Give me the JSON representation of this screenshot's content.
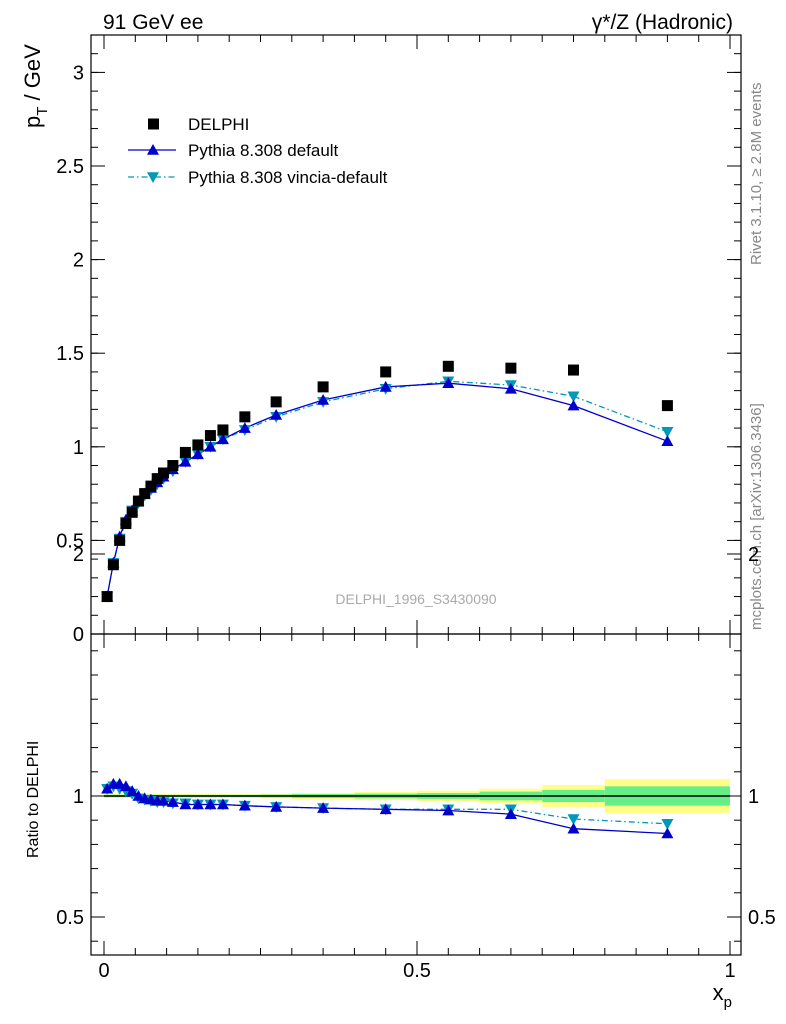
{
  "header": {
    "left": "91 GeV ee",
    "right": "γ*/Z (Hadronic)"
  },
  "side": {
    "rivet": "Rivet 3.1.10, ≥ 2.8M events",
    "mcplots": "mcplots.cern.ch [arXiv:1306.3436]"
  },
  "watermark": "DELPHI_1996_S3430090",
  "legend": [
    {
      "label": "DELPHI",
      "marker": "square",
      "color": "#000000"
    },
    {
      "label": "Pythia 8.308 default",
      "marker": "triangle-up",
      "color": "#0000cc"
    },
    {
      "label": "Pythia 8.308 vincia-default",
      "marker": "triangle-down",
      "color": "#0099bb"
    }
  ],
  "colors": {
    "data": "#000000",
    "default": "#0000cc",
    "vincia": "#0099bb",
    "band_inner": "#66ee88",
    "band_outer": "#ffff88"
  },
  "chart_data": [
    {
      "type": "scatter",
      "title": "",
      "xlabel": "x_p",
      "ylabel": "p_T / GeV",
      "xlim": [
        0,
        1
      ],
      "ylim": [
        0,
        3.2
      ],
      "yticks": [
        0,
        0.5,
        1,
        1.5,
        2,
        2.5,
        3
      ],
      "ytick_labels": [
        "0",
        "0.5",
        "1",
        "1.5",
        "2",
        "2.5",
        "3"
      ],
      "x": [
        0.005,
        0.015,
        0.025,
        0.035,
        0.045,
        0.055,
        0.065,
        0.075,
        0.085,
        0.095,
        0.11,
        0.13,
        0.15,
        0.17,
        0.19,
        0.225,
        0.275,
        0.35,
        0.45,
        0.55,
        0.65,
        0.75,
        0.9
      ],
      "series": [
        {
          "name": "DELPHI",
          "values": [
            0.2,
            0.37,
            0.5,
            0.59,
            0.65,
            0.71,
            0.75,
            0.79,
            0.83,
            0.86,
            0.9,
            0.97,
            1.01,
            1.06,
            1.09,
            1.16,
            1.24,
            1.32,
            1.4,
            1.43,
            1.42,
            1.41,
            1.22
          ]
        },
        {
          "name": "Pythia 8.308 default",
          "values": [
            0.2,
            0.38,
            0.52,
            0.61,
            0.66,
            0.71,
            0.75,
            0.78,
            0.81,
            0.84,
            0.88,
            0.92,
            0.96,
            1.0,
            1.04,
            1.1,
            1.17,
            1.25,
            1.32,
            1.34,
            1.31,
            1.22,
            1.03
          ]
        },
        {
          "name": "Pythia 8.308 vincia-default",
          "values": [
            0.2,
            0.38,
            0.51,
            0.6,
            0.66,
            0.7,
            0.74,
            0.77,
            0.8,
            0.83,
            0.87,
            0.92,
            0.96,
            1.0,
            1.04,
            1.09,
            1.16,
            1.24,
            1.31,
            1.35,
            1.33,
            1.27,
            1.08
          ]
        }
      ]
    },
    {
      "type": "line",
      "title": "",
      "xlabel": "x_p",
      "ylabel": "Ratio to DELPHI",
      "xlim": [
        0,
        1
      ],
      "ylim": [
        0.35,
        2.3
      ],
      "yticks": [
        0.5,
        1,
        2
      ],
      "ytick_labels": [
        "0.5",
        "1",
        "2"
      ],
      "xticks": [
        0,
        0.5,
        1
      ],
      "xtick_labels": [
        "0",
        "0.5",
        "1"
      ],
      "x": [
        0.005,
        0.015,
        0.025,
        0.035,
        0.045,
        0.055,
        0.065,
        0.075,
        0.085,
        0.095,
        0.11,
        0.13,
        0.15,
        0.17,
        0.19,
        0.225,
        0.275,
        0.35,
        0.45,
        0.55,
        0.65,
        0.75,
        0.9
      ],
      "series": [
        {
          "name": "Pythia 8.308 default",
          "values": [
            1.03,
            1.05,
            1.05,
            1.04,
            1.02,
            1.0,
            0.99,
            0.985,
            0.98,
            0.98,
            0.975,
            0.965,
            0.965,
            0.965,
            0.965,
            0.96,
            0.955,
            0.95,
            0.945,
            0.94,
            0.925,
            0.865,
            0.845
          ]
        },
        {
          "name": "Pythia 8.308 vincia-default",
          "values": [
            1.03,
            1.04,
            1.03,
            1.02,
            1.01,
            0.99,
            0.985,
            0.98,
            0.975,
            0.975,
            0.97,
            0.97,
            0.965,
            0.965,
            0.965,
            0.96,
            0.955,
            0.95,
            0.945,
            0.945,
            0.945,
            0.905,
            0.885
          ]
        }
      ],
      "uncertainty_band": {
        "x_edges": [
          0,
          0.01,
          0.02,
          0.03,
          0.04,
          0.05,
          0.06,
          0.07,
          0.08,
          0.09,
          0.1,
          0.12,
          0.14,
          0.16,
          0.18,
          0.2,
          0.25,
          0.3,
          0.4,
          0.5,
          0.6,
          0.7,
          0.8,
          1.0
        ],
        "inner_halfwidth": [
          0.005,
          0.005,
          0.005,
          0.005,
          0.005,
          0.005,
          0.005,
          0.005,
          0.005,
          0.005,
          0.005,
          0.005,
          0.005,
          0.005,
          0.005,
          0.005,
          0.006,
          0.008,
          0.01,
          0.012,
          0.018,
          0.025,
          0.04
        ],
        "outer_halfwidth": [
          0.008,
          0.008,
          0.008,
          0.008,
          0.008,
          0.008,
          0.008,
          0.008,
          0.008,
          0.008,
          0.008,
          0.008,
          0.008,
          0.008,
          0.008,
          0.008,
          0.01,
          0.013,
          0.017,
          0.022,
          0.03,
          0.045,
          0.07
        ]
      }
    }
  ]
}
